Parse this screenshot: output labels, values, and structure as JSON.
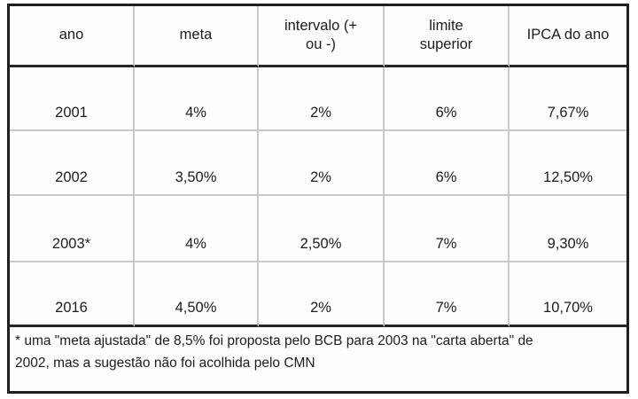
{
  "chart_data": {
    "type": "table",
    "columns": [
      "ano",
      "meta",
      "intervalo (+ ou -)",
      "limite superior",
      "IPCA do ano"
    ],
    "rows": [
      [
        "2001",
        "4%",
        "2%",
        "6%",
        "7,67%"
      ],
      [
        "2002",
        "3,50%",
        "2%",
        "6%",
        "12,50%"
      ],
      [
        "2003*",
        "4%",
        "2,50%",
        "7%",
        "9,30%"
      ],
      [
        "2016",
        "4,50%",
        "2%",
        "7%",
        "10,70%"
      ]
    ],
    "footnote": "* uma \"meta ajustada\" de 8,5% foi proposta pelo BCB para 2003 na \"carta aberta\" de 2002, mas a sugestão não foi acolhida pelo CMN",
    "layout": {
      "grid": "on",
      "header_alignment": "center",
      "cell_alignment": "center-bottom"
    }
  },
  "colors": {
    "outer_border": "#1f1f1f",
    "header_separator": "#262626",
    "gridline": "#c9c9c9",
    "text": "#1c1c1c",
    "background": "#fdfdfd"
  }
}
